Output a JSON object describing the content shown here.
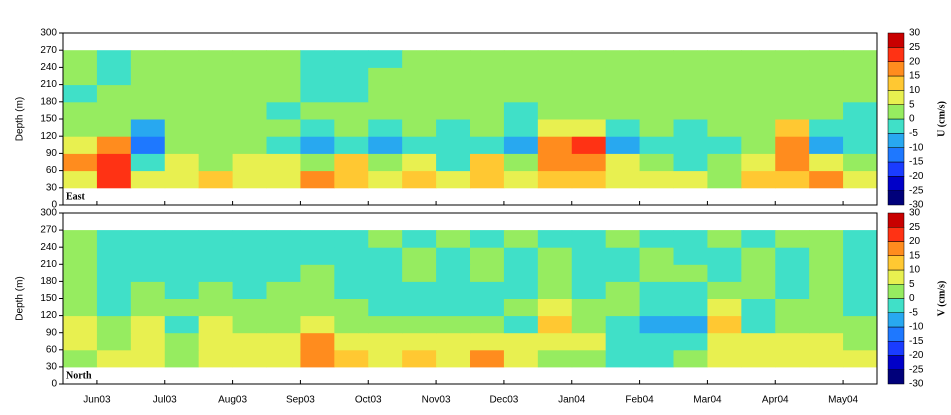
{
  "chart_data": [
    {
      "type": "heatmap",
      "label": "East",
      "ylabel": "Depth (m)",
      "colorbar_label": "U (cm/s)",
      "ylim": [
        300,
        0
      ],
      "yticks": [
        0,
        30,
        60,
        90,
        120,
        150,
        180,
        210,
        240,
        270,
        300
      ],
      "y": [
        45,
        75,
        105,
        135,
        165,
        195,
        225,
        255
      ],
      "values": [
        [
          8,
          20,
          8,
          8,
          10,
          5,
          8,
          15,
          10,
          8,
          10,
          5,
          12,
          5,
          12,
          12,
          8,
          8,
          5,
          3,
          10,
          12,
          15,
          8
        ],
        [
          15,
          22,
          -5,
          8,
          3,
          8,
          5,
          3,
          10,
          0,
          5,
          -3,
          10,
          3,
          18,
          18,
          5,
          3,
          -3,
          3,
          8,
          18,
          5,
          0
        ],
        [
          5,
          18,
          -12,
          3,
          0,
          3,
          -3,
          -8,
          -5,
          -8,
          -5,
          -3,
          -5,
          -10,
          18,
          22,
          -10,
          -3,
          -3,
          -3,
          3,
          18,
          -10,
          -5
        ],
        [
          0,
          3,
          -8,
          3,
          0,
          3,
          0,
          -5,
          3,
          -5,
          3,
          -3,
          3,
          -5,
          8,
          5,
          -5,
          3,
          -3,
          3,
          0,
          10,
          -5,
          -5
        ],
        [
          0,
          0,
          0,
          0,
          0,
          3,
          -3,
          0,
          0,
          0,
          0,
          0,
          0,
          -3,
          3,
          0,
          0,
          0,
          0,
          3,
          0,
          3,
          3,
          -3
        ],
        [
          -3,
          0,
          0,
          0,
          0,
          3,
          3,
          -3,
          -3,
          3,
          3,
          3,
          3,
          3,
          3,
          3,
          3,
          3,
          3,
          3,
          3,
          3,
          3,
          3
        ],
        [
          3,
          -3,
          3,
          3,
          3,
          3,
          3,
          -3,
          -3,
          3,
          3,
          3,
          3,
          3,
          3,
          3,
          3,
          3,
          3,
          3,
          3,
          3,
          3,
          3
        ],
        [
          3,
          -3,
          3,
          3,
          3,
          3,
          3,
          -3,
          -3,
          -3,
          3,
          3,
          3,
          3,
          3,
          3,
          3,
          3,
          3,
          3,
          3,
          3,
          3,
          3
        ]
      ],
      "clim": [
        -30,
        30
      ],
      "cticks": [
        -30,
        -25,
        -20,
        -15,
        -10,
        -5,
        0,
        5,
        10,
        15,
        20,
        25,
        30
      ],
      "colors": [
        "#00007a",
        "#0000c8",
        "#1a3cff",
        "#1e78ff",
        "#28a8f0",
        "#40e0c8",
        "#96ec60",
        "#e8f050",
        "#ffc832",
        "#ff8c1e",
        "#ff3214",
        "#c80000"
      ]
    },
    {
      "type": "heatmap",
      "label": "North",
      "ylabel": "Depth (m)",
      "colorbar_label": "V (cm/s)",
      "ylim": [
        300,
        0
      ],
      "yticks": [
        0,
        30,
        60,
        90,
        120,
        150,
        180,
        210,
        240,
        270,
        300
      ],
      "y": [
        45,
        75,
        105,
        135,
        165,
        195,
        225,
        255
      ],
      "categories": [
        "Jun03",
        "Jul03",
        "Aug03",
        "Sep03",
        "Oct03",
        "Nov03",
        "Dec03",
        "Jan04",
        "Feb04",
        "Mar04",
        "Apr04",
        "May04"
      ],
      "values": [
        [
          3,
          8,
          5,
          3,
          5,
          8,
          8,
          15,
          10,
          8,
          12,
          8,
          15,
          8,
          3,
          3,
          -3,
          -5,
          3,
          5,
          5,
          8,
          8,
          8
        ],
        [
          8,
          3,
          8,
          3,
          5,
          5,
          5,
          18,
          8,
          5,
          5,
          8,
          5,
          5,
          8,
          5,
          -5,
          -5,
          -3,
          5,
          5,
          8,
          5,
          3
        ],
        [
          5,
          3,
          8,
          -3,
          5,
          3,
          3,
          8,
          3,
          3,
          3,
          3,
          3,
          -3,
          10,
          3,
          -3,
          -8,
          -8,
          12,
          -3,
          3,
          3,
          3
        ],
        [
          3,
          -3,
          3,
          3,
          3,
          0,
          3,
          3,
          3,
          -3,
          -5,
          -5,
          -3,
          3,
          5,
          3,
          3,
          -3,
          -5,
          8,
          -3,
          3,
          3,
          -3
        ],
        [
          3,
          -3,
          3,
          -3,
          3,
          -3,
          3,
          3,
          -3,
          -3,
          -3,
          -3,
          -3,
          -3,
          3,
          -3,
          3,
          -3,
          -3,
          3,
          3,
          -3,
          3,
          -3
        ],
        [
          3,
          -3,
          -3,
          -3,
          -3,
          -3,
          -3,
          3,
          -3,
          -3,
          3,
          -3,
          3,
          -3,
          3,
          -3,
          -3,
          3,
          3,
          -3,
          3,
          -3,
          3,
          -3
        ],
        [
          3,
          -3,
          -3,
          -3,
          -3,
          -3,
          -3,
          -3,
          -3,
          -3,
          3,
          -3,
          3,
          -3,
          3,
          -3,
          -3,
          3,
          -3,
          -3,
          3,
          -3,
          3,
          -3
        ],
        [
          3,
          -3,
          -3,
          -3,
          -3,
          -3,
          -3,
          -3,
          -3,
          3,
          -3,
          3,
          -3,
          3,
          -3,
          -3,
          3,
          -3,
          -3,
          3,
          -3,
          3,
          3,
          -3
        ]
      ],
      "clim": [
        -30,
        30
      ],
      "cticks": [
        -30,
        -25,
        -20,
        -15,
        -10,
        -5,
        0,
        5,
        10,
        15,
        20,
        25,
        30
      ],
      "colors": [
        "#00007a",
        "#0000c8",
        "#1a3cff",
        "#1e78ff",
        "#28a8f0",
        "#40e0c8",
        "#96ec60",
        "#e8f050",
        "#ffc832",
        "#ff8c1e",
        "#ff3214",
        "#c80000"
      ]
    }
  ]
}
